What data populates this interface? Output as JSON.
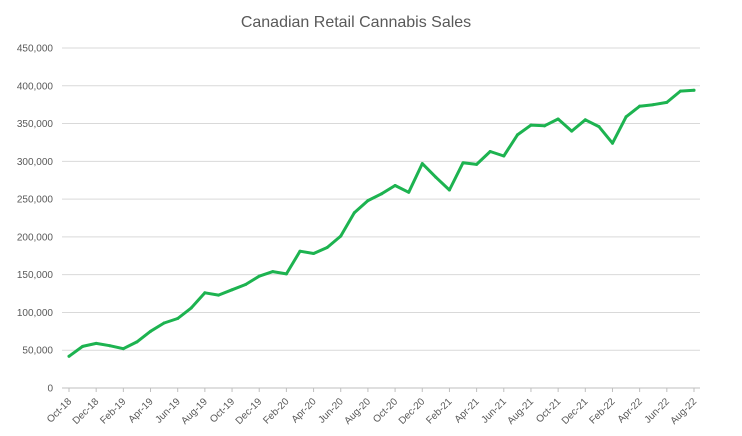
{
  "chart_data": {
    "type": "line",
    "title": "Canadian Retail Cannabis Sales",
    "xlabel": "",
    "ylabel": "",
    "ylim": [
      0,
      450000
    ],
    "yticks": [
      0,
      50000,
      100000,
      150000,
      200000,
      250000,
      300000,
      350000,
      400000,
      450000
    ],
    "ytick_labels": [
      "0",
      "50,000",
      "100,000",
      "150,000",
      "200,000",
      "250,000",
      "300,000",
      "350,000",
      "400,000",
      "450,000"
    ],
    "grid": "horizontal",
    "legend": "none",
    "line_color": "#1db350",
    "x": [
      "Oct-18",
      "Nov-18",
      "Dec-18",
      "Jan-19",
      "Feb-19",
      "Mar-19",
      "Apr-19",
      "May-19",
      "Jun-19",
      "Jul-19",
      "Aug-19",
      "Sep-19",
      "Oct-19",
      "Nov-19",
      "Dec-19",
      "Jan-20",
      "Feb-20",
      "Mar-20",
      "Apr-20",
      "May-20",
      "Jun-20",
      "Jul-20",
      "Aug-20",
      "Sep-20",
      "Oct-20",
      "Nov-20",
      "Dec-20",
      "Jan-21",
      "Feb-21",
      "Mar-21",
      "Apr-21",
      "May-21",
      "Jun-21",
      "Jul-21",
      "Aug-21",
      "Sep-21",
      "Oct-21",
      "Nov-21",
      "Dec-21",
      "Jan-22",
      "Feb-22",
      "Mar-22",
      "Apr-22",
      "May-22",
      "Jun-22",
      "Jul-22",
      "Aug-22"
    ],
    "xtick_labels": [
      "Oct-18",
      "Dec-18",
      "Feb-19",
      "Apr-19",
      "Jun-19",
      "Aug-19",
      "Oct-19",
      "Dec-19",
      "Feb-20",
      "Apr-20",
      "Jun-20",
      "Aug-20",
      "Oct-20",
      "Dec-20",
      "Feb-21",
      "Apr-21",
      "Jun-21",
      "Aug-21",
      "Oct-21",
      "Dec-21",
      "Feb-22",
      "Apr-22",
      "Jun-22",
      "Aug-22"
    ],
    "values": [
      42000,
      55000,
      59000,
      56000,
      52000,
      61000,
      75000,
      86000,
      92000,
      106000,
      126000,
      123000,
      130000,
      137000,
      148000,
      154000,
      151000,
      181000,
      178000,
      186000,
      201000,
      232000,
      248000,
      257000,
      268000,
      259000,
      297000,
      279000,
      262000,
      298000,
      296000,
      313000,
      307000,
      335000,
      348000,
      347000,
      356000,
      340000,
      355000,
      346000,
      324000,
      359000,
      373000,
      375000,
      378000,
      393000,
      394000
    ]
  }
}
